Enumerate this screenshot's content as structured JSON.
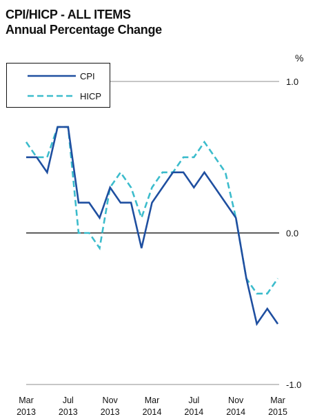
{
  "title_line1": "CPI/HICP  - ALL ITEMS",
  "title_line2": "Annual Percentage Change",
  "unit": "%",
  "chart_data": {
    "type": "line",
    "title": "CPI/HICP  - ALL ITEMS",
    "subtitle": "Annual Percentage Change",
    "ylabel": "%",
    "ylim": [
      -1.0,
      1.0
    ],
    "yticks": [
      1.0,
      0.0,
      -1.0
    ],
    "ytick_labels": [
      "1.0",
      "0.0",
      "-1.0"
    ],
    "xlim": [
      "2013-03",
      "2015-03"
    ],
    "xticks": [
      {
        "x": "2013-03",
        "line1": "Mar",
        "line2": "2013"
      },
      {
        "x": "2013-07",
        "line1": "Jul",
        "line2": "2013"
      },
      {
        "x": "2013-11",
        "line1": "Nov",
        "line2": "2013"
      },
      {
        "x": "2014-03",
        "line1": "Mar",
        "line2": "2014"
      },
      {
        "x": "2014-07",
        "line1": "Jul",
        "line2": "2014"
      },
      {
        "x": "2014-11",
        "line1": "Nov",
        "line2": "2014"
      },
      {
        "x": "2015-03",
        "line1": "Mar",
        "line2": "2015"
      }
    ],
    "x": [
      "2013-03",
      "2013-04",
      "2013-05",
      "2013-06",
      "2013-07",
      "2013-08",
      "2013-09",
      "2013-10",
      "2013-11",
      "2013-12",
      "2014-01",
      "2014-02",
      "2014-03",
      "2014-04",
      "2014-05",
      "2014-06",
      "2014-07",
      "2014-08",
      "2014-09",
      "2014-10",
      "2014-11",
      "2014-12",
      "2015-01",
      "2015-02",
      "2015-03"
    ],
    "series": [
      {
        "name": "CPI",
        "color": "#1f4fa0",
        "style": "solid",
        "values": [
          0.5,
          0.5,
          0.4,
          0.7,
          0.7,
          0.2,
          0.2,
          0.1,
          0.3,
          0.2,
          0.2,
          -0.1,
          0.2,
          0.3,
          0.4,
          0.4,
          0.3,
          0.4,
          0.3,
          0.2,
          0.1,
          -0.3,
          -0.6,
          -0.5,
          -0.6
        ]
      },
      {
        "name": "HICP",
        "color": "#3cbccc",
        "style": "dashed",
        "values": [
          0.6,
          0.5,
          0.5,
          0.7,
          0.7,
          0.0,
          0.0,
          -0.1,
          0.3,
          0.4,
          0.3,
          0.1,
          0.3,
          0.4,
          0.4,
          0.5,
          0.5,
          0.6,
          0.5,
          0.4,
          0.1,
          -0.3,
          -0.4,
          -0.4,
          -0.3
        ]
      }
    ],
    "zero_line": true,
    "grid": false,
    "legend_position": "top-left"
  }
}
